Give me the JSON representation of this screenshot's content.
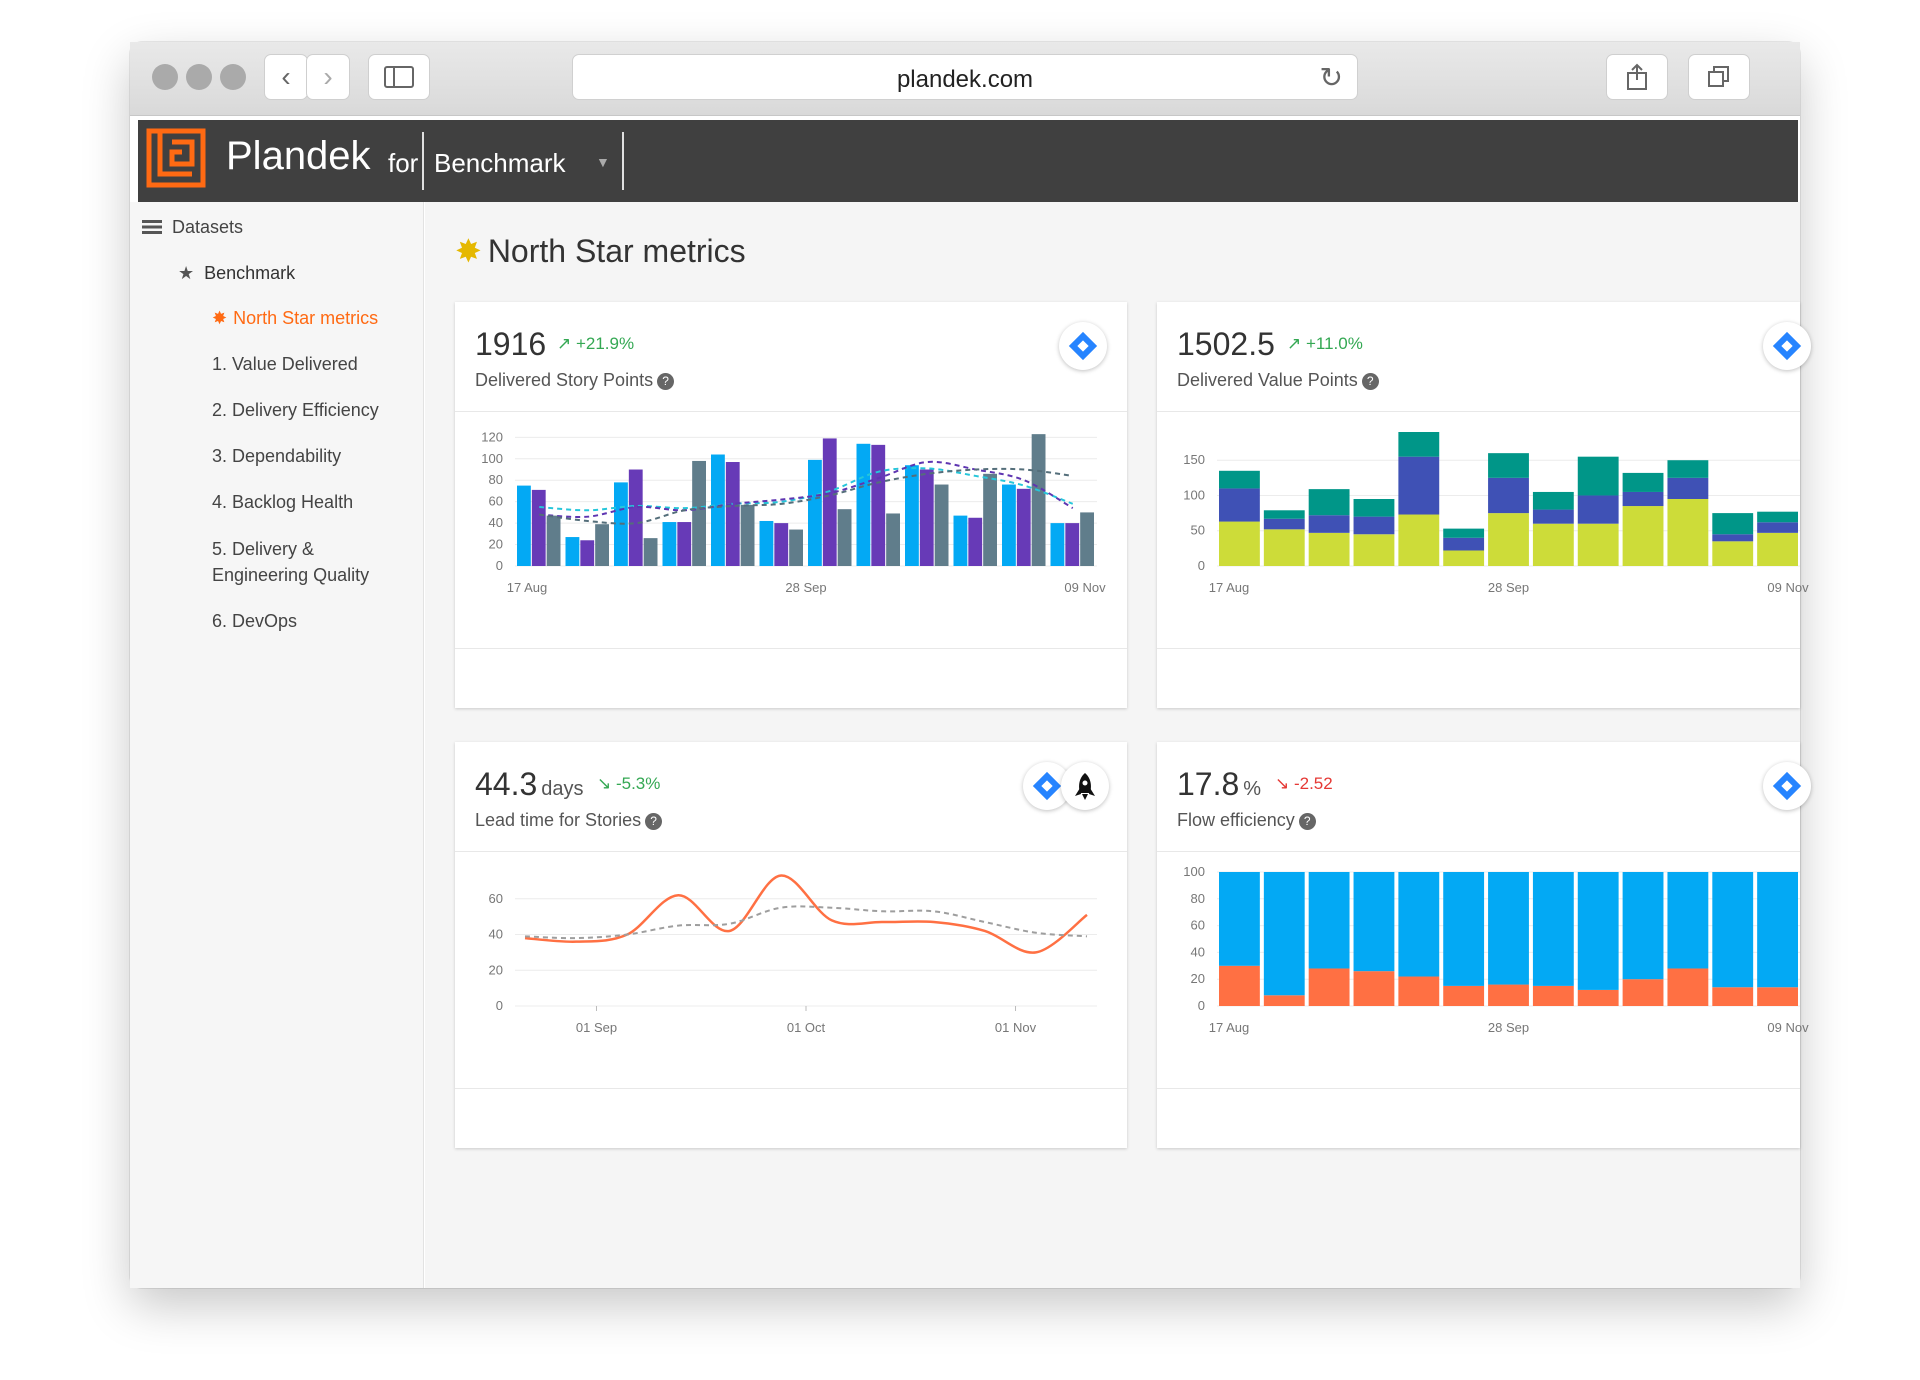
{
  "browser": {
    "url": "plandek.com"
  },
  "app": {
    "brand": "Plandek",
    "brand_for": "for",
    "dataset": "Benchmark"
  },
  "sidebar": {
    "datasets_label": "Datasets",
    "group_label": "Benchmark",
    "items": [
      {
        "label": "North Star metrics",
        "active": true
      },
      {
        "label": "1. Value Delivered"
      },
      {
        "label": "2. Delivery Efficiency"
      },
      {
        "label": "3. Dependability"
      },
      {
        "label": "4. Backlog Health"
      },
      {
        "label": "5. Delivery &"
      },
      {
        "label": "Engineering Quality"
      },
      {
        "label": "6. DevOps"
      }
    ]
  },
  "page": {
    "title": "North Star metrics"
  },
  "cards": [
    {
      "value": "1916",
      "unit": "",
      "change": "+21.9%",
      "name": "Delivered Story Points",
      "sources": [
        "jira-icon"
      ]
    },
    {
      "value": "1502.5",
      "unit": "",
      "change": "+11.0%",
      "name": "Delivered Value Points",
      "sources": [
        "jira-icon"
      ]
    },
    {
      "value": "44.3",
      "unit": "days",
      "change": "-5.3%",
      "name": "Lead time for Stories",
      "sources": [
        "jira-icon",
        "rocket-icon"
      ]
    },
    {
      "value": "17.8",
      "unit": "%",
      "change": "-2.52",
      "name": "Flow efficiency",
      "sources": [
        "jira-icon"
      ]
    }
  ],
  "colors": {
    "accent": "#ff6a13",
    "header": "#404040",
    "up": "#34a853",
    "down": "#e53935"
  },
  "chart_data": [
    {
      "type": "bar",
      "title": "Delivered Story Points",
      "x_ticks": [
        "17 Aug",
        "28 Sep",
        "09 Nov"
      ],
      "y_ticks": [
        0,
        20,
        40,
        60,
        80,
        100,
        120
      ],
      "ylim": [
        0,
        125
      ],
      "series": [
        {
          "color": "#03a9f4",
          "values": [
            75,
            27,
            78,
            41,
            104,
            42,
            99,
            114,
            94,
            47,
            76,
            40
          ]
        },
        {
          "color": "#673ab7",
          "values": [
            71,
            24,
            90,
            41,
            97,
            40,
            119,
            113,
            90,
            45,
            72,
            40
          ]
        },
        {
          "color": "#607d8b",
          "values": [
            47,
            39,
            26,
            98,
            57,
            34,
            53,
            49,
            76,
            86,
            123,
            50
          ]
        }
      ],
      "trend_lines": [
        {
          "color": "#26c6da",
          "values": [
            55,
            52,
            56,
            54,
            58,
            60,
            70,
            88,
            91,
            84,
            75,
            58
          ]
        },
        {
          "color": "#5e35b1",
          "values": [
            48,
            46,
            55,
            52,
            58,
            62,
            68,
            82,
            97,
            90,
            80,
            54
          ]
        },
        {
          "color": "#546e7a",
          "values": [
            48,
            42,
            40,
            52,
            56,
            58,
            66,
            78,
            86,
            90,
            90,
            84
          ]
        }
      ]
    },
    {
      "type": "bar",
      "stacked": true,
      "title": "Delivered Value Points",
      "x_ticks": [
        "17 Aug",
        "28 Sep",
        "09 Nov"
      ],
      "y_ticks": [
        0,
        50,
        100,
        150
      ],
      "ylim": [
        0,
        190
      ],
      "series": [
        {
          "color": "#cddc39",
          "values": [
            63,
            52,
            47,
            45,
            73,
            22,
            75,
            60,
            60,
            85,
            95,
            35,
            47
          ]
        },
        {
          "color": "#3f51b5",
          "values": [
            47,
            15,
            25,
            25,
            82,
            18,
            50,
            20,
            40,
            20,
            30,
            10,
            15
          ]
        },
        {
          "color": "#009688",
          "values": [
            25,
            12,
            37,
            25,
            35,
            13,
            35,
            25,
            55,
            27,
            25,
            30,
            15
          ]
        }
      ]
    },
    {
      "type": "line",
      "title": "Lead time for Stories",
      "x_ticks": [
        "01 Sep",
        "01 Oct",
        "01 Nov"
      ],
      "y_ticks": [
        0,
        20,
        40,
        60
      ],
      "ylim": [
        0,
        75
      ],
      "series": [
        {
          "color": "#ff7043",
          "values": [
            38,
            36,
            40,
            62,
            42,
            73,
            48,
            47,
            47,
            42,
            30,
            51
          ]
        },
        {
          "color": "#9e9e9e",
          "dashed": true,
          "values": [
            39,
            38,
            40,
            45,
            46,
            55,
            55,
            53,
            53,
            47,
            41,
            39
          ]
        }
      ]
    },
    {
      "type": "bar",
      "stacked": true,
      "title": "Flow efficiency",
      "x_ticks": [
        "17 Aug",
        "28 Sep",
        "09 Nov"
      ],
      "y_ticks": [
        0,
        20,
        40,
        60,
        80,
        100
      ],
      "ylim": [
        0,
        100
      ],
      "series": [
        {
          "color": "#ff7043",
          "values": [
            30,
            8,
            28,
            26,
            22,
            15,
            16,
            15,
            12,
            20,
            28,
            14,
            14
          ]
        },
        {
          "color": "#03a9f4",
          "values": [
            70,
            92,
            72,
            74,
            78,
            85,
            84,
            85,
            88,
            80,
            72,
            86,
            86
          ]
        }
      ]
    }
  ]
}
